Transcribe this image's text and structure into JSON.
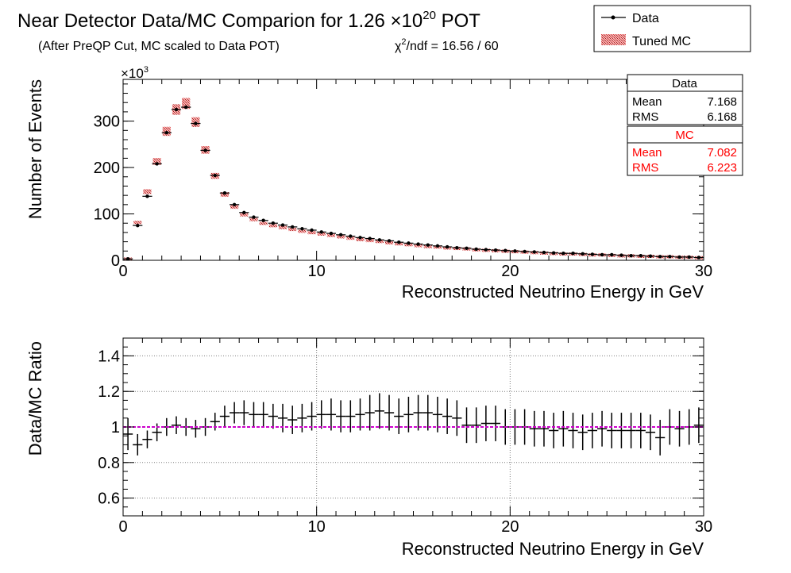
{
  "title": {
    "main": "Near Detector Data/MC Comparion for 1.26 ×10",
    "main_sup": "20",
    "main_suffix": " POT",
    "subtitle": "(After PreQP Cut, MC scaled to Data POT)",
    "chi2_prefix": "χ",
    "chi2_sup": "2",
    "chi2_suffix": "/ndf = 16.56 / 60"
  },
  "legend": {
    "entries": [
      {
        "label": "Data",
        "symbol": "marker-line"
      },
      {
        "label": "Tuned MC",
        "symbol": "hatched-box"
      }
    ]
  },
  "stats": {
    "data": {
      "title": "Data",
      "mean_label": "Mean",
      "mean": "7.168",
      "rms_label": "RMS",
      "rms": "6.168"
    },
    "mc": {
      "title": "MC",
      "mean_label": "Mean",
      "mean": "7.082",
      "rms_label": "RMS",
      "rms": "6.223"
    }
  },
  "colors": {
    "data": "#000000",
    "mc_fill": "#d94040",
    "mc_text": "#ff0000",
    "ratio_line": "#cc00cc",
    "grid": "#7f7f7f"
  },
  "chart_data": [
    {
      "type": "bar",
      "name": "energy-spectrum",
      "xlabel": "Reconstructed Neutrino Energy in GeV",
      "ylabel": "Number of Events",
      "y_multiplier_label": "×10",
      "y_multiplier_sup": "3",
      "xlim": [
        0,
        30
      ],
      "ylim": [
        0,
        390
      ],
      "x_ticks": [
        "0",
        "10",
        "20",
        "30"
      ],
      "y_ticks": [
        "0",
        "100",
        "200",
        "300"
      ],
      "grid": false,
      "legend_position": "top-right",
      "bin_width": 0.5,
      "x": [
        0.25,
        0.75,
        1.25,
        1.75,
        2.25,
        2.75,
        3.25,
        3.75,
        4.25,
        4.75,
        5.25,
        5.75,
        6.25,
        6.75,
        7.25,
        7.75,
        8.25,
        8.75,
        9.25,
        9.75,
        10.25,
        10.75,
        11.25,
        11.75,
        12.25,
        12.75,
        13.25,
        13.75,
        14.25,
        14.75,
        15.25,
        15.75,
        16.25,
        16.75,
        17.25,
        17.75,
        18.25,
        18.75,
        19.25,
        19.75,
        20.25,
        20.75,
        21.25,
        21.75,
        22.25,
        22.75,
        23.25,
        23.75,
        24.25,
        24.75,
        25.25,
        25.75,
        26.25,
        26.75,
        27.25,
        27.75,
        28.25,
        28.75,
        29.25,
        29.75
      ],
      "series": [
        {
          "name": "Data",
          "values": [
            3,
            75,
            138,
            208,
            275,
            325,
            330,
            295,
            237,
            183,
            145,
            120,
            103,
            93,
            86,
            80,
            76,
            72,
            68,
            65,
            61,
            58,
            55,
            52,
            49,
            47,
            44,
            42,
            39,
            37,
            35,
            33,
            31,
            29,
            27,
            26,
            24,
            23,
            22,
            21,
            20,
            19,
            18,
            17,
            16,
            15,
            15,
            14,
            13,
            12,
            12,
            11,
            10,
            10,
            9,
            8,
            8,
            7,
            7,
            6
          ]
        },
        {
          "name": "Tuned MC",
          "values": [
            3,
            82,
            148,
            213,
            278,
            325,
            338,
            298,
            238,
            182,
            142,
            115,
            98,
            88,
            80,
            75,
            71,
            67,
            63,
            60,
            57,
            54,
            51,
            48,
            45,
            43,
            41,
            38,
            36,
            34,
            32,
            30,
            29,
            27,
            26,
            25,
            23,
            22,
            21,
            20,
            19,
            18,
            17,
            16,
            15,
            14,
            14,
            13,
            12,
            12,
            11,
            10,
            10,
            9,
            9,
            8,
            8,
            7,
            7,
            6
          ]
        }
      ]
    },
    {
      "type": "scatter",
      "name": "data-mc-ratio",
      "xlabel": "Reconstructed Neutrino Energy in GeV",
      "ylabel": "Data/MC Ratio",
      "xlim": [
        0,
        30
      ],
      "ylim": [
        0.5,
        1.5
      ],
      "x_ticks": [
        "0",
        "10",
        "20",
        "30"
      ],
      "y_ticks": [
        "0.6",
        "0.8",
        "1",
        "1.2",
        "1.4"
      ],
      "grid": true,
      "reference_line": 1.0,
      "bin_width": 0.5,
      "x": [
        0.25,
        0.75,
        1.25,
        1.75,
        2.25,
        2.75,
        3.25,
        3.75,
        4.25,
        4.75,
        5.25,
        5.75,
        6.25,
        6.75,
        7.25,
        7.75,
        8.25,
        8.75,
        9.25,
        9.75,
        10.25,
        10.75,
        11.25,
        11.75,
        12.25,
        12.75,
        13.25,
        13.75,
        14.25,
        14.75,
        15.25,
        15.75,
        16.25,
        16.75,
        17.25,
        17.75,
        18.25,
        18.75,
        19.25,
        19.75,
        20.25,
        20.75,
        21.25,
        21.75,
        22.25,
        22.75,
        23.25,
        23.75,
        24.25,
        24.75,
        25.25,
        25.75,
        26.25,
        26.75,
        27.25,
        27.75,
        28.25,
        28.75,
        29.25,
        29.75
      ],
      "values": [
        0.96,
        0.9,
        0.93,
        0.97,
        1.0,
        1.01,
        1.0,
        0.99,
        1.0,
        1.03,
        1.06,
        1.08,
        1.08,
        1.07,
        1.07,
        1.06,
        1.05,
        1.04,
        1.05,
        1.06,
        1.07,
        1.07,
        1.06,
        1.06,
        1.07,
        1.08,
        1.09,
        1.08,
        1.06,
        1.07,
        1.08,
        1.08,
        1.07,
        1.06,
        1.05,
        1.01,
        1.01,
        1.02,
        1.02,
        1.0,
        1.0,
        1.0,
        0.99,
        0.99,
        0.98,
        0.99,
        0.98,
        0.97,
        0.98,
        0.99,
        0.98,
        0.98,
        0.98,
        0.98,
        0.97,
        0.94,
        1.0,
        0.99,
        1.0,
        1.01
      ],
      "errors": [
        0.09,
        0.06,
        0.05,
        0.05,
        0.05,
        0.05,
        0.05,
        0.05,
        0.05,
        0.05,
        0.06,
        0.06,
        0.07,
        0.07,
        0.07,
        0.07,
        0.08,
        0.08,
        0.08,
        0.08,
        0.08,
        0.09,
        0.09,
        0.09,
        0.09,
        0.1,
        0.1,
        0.1,
        0.1,
        0.1,
        0.1,
        0.1,
        0.1,
        0.1,
        0.1,
        0.1,
        0.1,
        0.1,
        0.1,
        0.1,
        0.1,
        0.1,
        0.1,
        0.1,
        0.1,
        0.1,
        0.1,
        0.1,
        0.1,
        0.1,
        0.1,
        0.1,
        0.1,
        0.1,
        0.1,
        0.1,
        0.1,
        0.1,
        0.1,
        0.1
      ]
    }
  ]
}
